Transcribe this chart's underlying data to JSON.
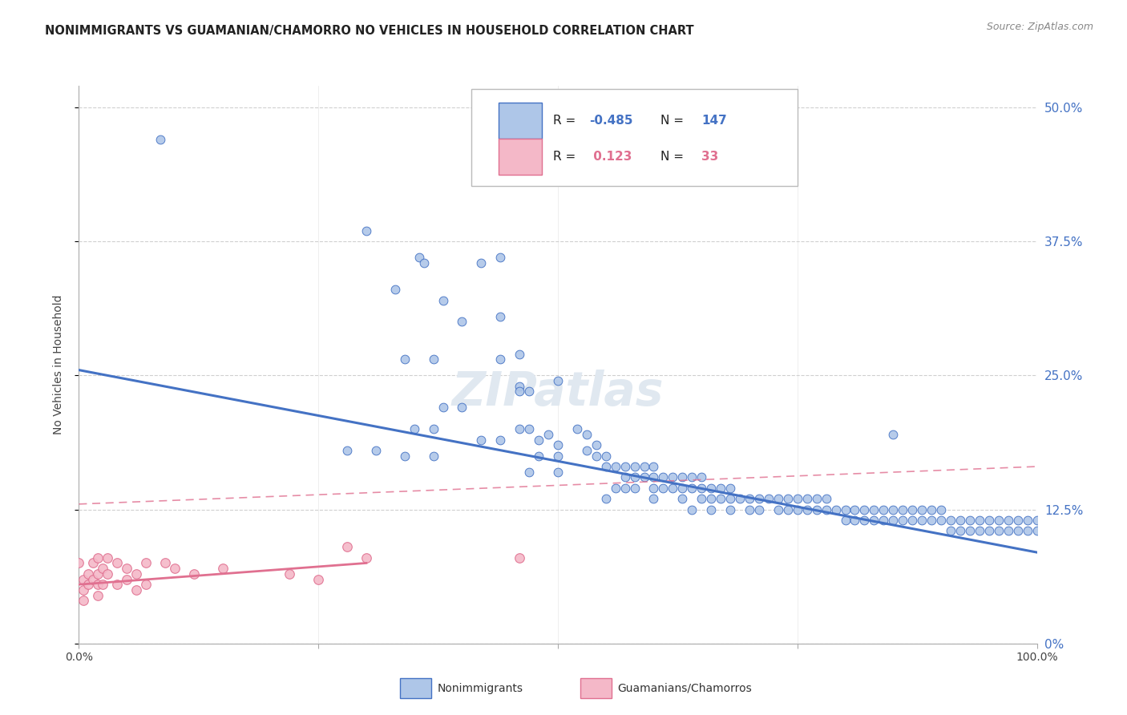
{
  "title": "NONIMMIGRANTS VS GUAMANIAN/CHAMORRO NO VEHICLES IN HOUSEHOLD CORRELATION CHART",
  "source": "Source: ZipAtlas.com",
  "ylabel": "No Vehicles in Household",
  "ytick_vals": [
    0.0,
    0.125,
    0.25,
    0.375,
    0.5
  ],
  "ytick_labels": [
    "0%",
    "12.5%",
    "25.0%",
    "37.5%",
    "50.0%"
  ],
  "xtick_vals": [
    0.0,
    0.25,
    0.5,
    0.75,
    1.0
  ],
  "xtick_labels": [
    "0.0%",
    "",
    "",
    "",
    "100.0%"
  ],
  "legend_entry1": {
    "label": "Nonimmigrants",
    "R": "-0.485",
    "N": "147",
    "color": "#aec6e8",
    "line_color": "#4472c4"
  },
  "legend_entry2": {
    "label": "Guamanians/Chamorros",
    "R": "0.123",
    "N": "33",
    "color": "#f4b8c8",
    "line_color": "#e07090"
  },
  "blue_scatter": [
    [
      0.085,
      0.47
    ],
    [
      0.3,
      0.385
    ],
    [
      0.355,
      0.36
    ],
    [
      0.33,
      0.33
    ],
    [
      0.36,
      0.355
    ],
    [
      0.42,
      0.355
    ],
    [
      0.44,
      0.36
    ],
    [
      0.38,
      0.32
    ],
    [
      0.4,
      0.3
    ],
    [
      0.44,
      0.305
    ],
    [
      0.34,
      0.265
    ],
    [
      0.37,
      0.265
    ],
    [
      0.46,
      0.27
    ],
    [
      0.44,
      0.265
    ],
    [
      0.46,
      0.24
    ],
    [
      0.46,
      0.235
    ],
    [
      0.47,
      0.235
    ],
    [
      0.38,
      0.22
    ],
    [
      0.4,
      0.22
    ],
    [
      0.35,
      0.2
    ],
    [
      0.37,
      0.2
    ],
    [
      0.46,
      0.2
    ],
    [
      0.47,
      0.2
    ],
    [
      0.48,
      0.19
    ],
    [
      0.49,
      0.195
    ],
    [
      0.5,
      0.185
    ],
    [
      0.42,
      0.19
    ],
    [
      0.44,
      0.19
    ],
    [
      0.52,
      0.2
    ],
    [
      0.53,
      0.195
    ],
    [
      0.53,
      0.18
    ],
    [
      0.54,
      0.185
    ],
    [
      0.48,
      0.175
    ],
    [
      0.5,
      0.175
    ],
    [
      0.54,
      0.175
    ],
    [
      0.55,
      0.175
    ],
    [
      0.55,
      0.165
    ],
    [
      0.56,
      0.165
    ],
    [
      0.57,
      0.165
    ],
    [
      0.58,
      0.165
    ],
    [
      0.59,
      0.165
    ],
    [
      0.6,
      0.165
    ],
    [
      0.57,
      0.155
    ],
    [
      0.58,
      0.155
    ],
    [
      0.59,
      0.155
    ],
    [
      0.6,
      0.155
    ],
    [
      0.61,
      0.155
    ],
    [
      0.62,
      0.155
    ],
    [
      0.63,
      0.155
    ],
    [
      0.64,
      0.155
    ],
    [
      0.65,
      0.155
    ],
    [
      0.56,
      0.145
    ],
    [
      0.57,
      0.145
    ],
    [
      0.58,
      0.145
    ],
    [
      0.6,
      0.145
    ],
    [
      0.61,
      0.145
    ],
    [
      0.62,
      0.145
    ],
    [
      0.63,
      0.145
    ],
    [
      0.64,
      0.145
    ],
    [
      0.65,
      0.145
    ],
    [
      0.66,
      0.145
    ],
    [
      0.67,
      0.145
    ],
    [
      0.68,
      0.145
    ],
    [
      0.55,
      0.135
    ],
    [
      0.6,
      0.135
    ],
    [
      0.63,
      0.135
    ],
    [
      0.65,
      0.135
    ],
    [
      0.66,
      0.135
    ],
    [
      0.67,
      0.135
    ],
    [
      0.68,
      0.135
    ],
    [
      0.69,
      0.135
    ],
    [
      0.7,
      0.135
    ],
    [
      0.71,
      0.135
    ],
    [
      0.72,
      0.135
    ],
    [
      0.73,
      0.135
    ],
    [
      0.74,
      0.135
    ],
    [
      0.75,
      0.135
    ],
    [
      0.76,
      0.135
    ],
    [
      0.77,
      0.135
    ],
    [
      0.78,
      0.135
    ],
    [
      0.64,
      0.125
    ],
    [
      0.66,
      0.125
    ],
    [
      0.68,
      0.125
    ],
    [
      0.7,
      0.125
    ],
    [
      0.71,
      0.125
    ],
    [
      0.73,
      0.125
    ],
    [
      0.74,
      0.125
    ],
    [
      0.75,
      0.125
    ],
    [
      0.76,
      0.125
    ],
    [
      0.77,
      0.125
    ],
    [
      0.78,
      0.125
    ],
    [
      0.79,
      0.125
    ],
    [
      0.8,
      0.125
    ],
    [
      0.81,
      0.125
    ],
    [
      0.82,
      0.125
    ],
    [
      0.83,
      0.125
    ],
    [
      0.84,
      0.125
    ],
    [
      0.85,
      0.125
    ],
    [
      0.86,
      0.125
    ],
    [
      0.87,
      0.125
    ],
    [
      0.88,
      0.125
    ],
    [
      0.89,
      0.125
    ],
    [
      0.9,
      0.125
    ],
    [
      0.8,
      0.115
    ],
    [
      0.81,
      0.115
    ],
    [
      0.82,
      0.115
    ],
    [
      0.83,
      0.115
    ],
    [
      0.84,
      0.115
    ],
    [
      0.85,
      0.115
    ],
    [
      0.86,
      0.115
    ],
    [
      0.87,
      0.115
    ],
    [
      0.88,
      0.115
    ],
    [
      0.89,
      0.115
    ],
    [
      0.9,
      0.115
    ],
    [
      0.91,
      0.115
    ],
    [
      0.92,
      0.115
    ],
    [
      0.93,
      0.115
    ],
    [
      0.94,
      0.115
    ],
    [
      0.95,
      0.115
    ],
    [
      0.96,
      0.115
    ],
    [
      0.97,
      0.115
    ],
    [
      0.98,
      0.115
    ],
    [
      0.99,
      0.115
    ],
    [
      1.0,
      0.115
    ],
    [
      0.91,
      0.105
    ],
    [
      0.92,
      0.105
    ],
    [
      0.93,
      0.105
    ],
    [
      0.94,
      0.105
    ],
    [
      0.95,
      0.105
    ],
    [
      0.96,
      0.105
    ],
    [
      0.97,
      0.105
    ],
    [
      0.98,
      0.105
    ],
    [
      0.99,
      0.105
    ],
    [
      1.0,
      0.105
    ],
    [
      0.85,
      0.195
    ],
    [
      0.5,
      0.245
    ],
    [
      0.28,
      0.18
    ],
    [
      0.31,
      0.18
    ],
    [
      0.34,
      0.175
    ],
    [
      0.37,
      0.175
    ],
    [
      0.47,
      0.16
    ],
    [
      0.5,
      0.16
    ]
  ],
  "pink_scatter": [
    [
      0.0,
      0.075
    ],
    [
      0.005,
      0.06
    ],
    [
      0.005,
      0.05
    ],
    [
      0.005,
      0.04
    ],
    [
      0.01,
      0.065
    ],
    [
      0.01,
      0.055
    ],
    [
      0.015,
      0.075
    ],
    [
      0.015,
      0.06
    ],
    [
      0.02,
      0.08
    ],
    [
      0.02,
      0.065
    ],
    [
      0.02,
      0.055
    ],
    [
      0.02,
      0.045
    ],
    [
      0.025,
      0.07
    ],
    [
      0.025,
      0.055
    ],
    [
      0.03,
      0.08
    ],
    [
      0.03,
      0.065
    ],
    [
      0.04,
      0.075
    ],
    [
      0.04,
      0.055
    ],
    [
      0.05,
      0.07
    ],
    [
      0.05,
      0.06
    ],
    [
      0.06,
      0.065
    ],
    [
      0.06,
      0.05
    ],
    [
      0.07,
      0.075
    ],
    [
      0.07,
      0.055
    ],
    [
      0.09,
      0.075
    ],
    [
      0.1,
      0.07
    ],
    [
      0.12,
      0.065
    ],
    [
      0.15,
      0.07
    ],
    [
      0.22,
      0.065
    ],
    [
      0.25,
      0.06
    ],
    [
      0.28,
      0.09
    ],
    [
      0.3,
      0.08
    ],
    [
      0.46,
      0.08
    ]
  ],
  "blue_line": {
    "x0": 0.0,
    "y0": 0.255,
    "x1": 1.0,
    "y1": 0.085
  },
  "pink_solid_line": {
    "x0": 0.0,
    "y0": 0.055,
    "x1": 0.3,
    "y1": 0.075
  },
  "pink_dash_line": {
    "x0": 0.0,
    "y0": 0.13,
    "x1": 1.0,
    "y1": 0.165
  },
  "watermark_text": "ZIPatlas",
  "bg_color": "#ffffff",
  "grid_color": "#d0d0d0",
  "title_color": "#222222",
  "source_color": "#888888",
  "ylabel_color": "#444444"
}
